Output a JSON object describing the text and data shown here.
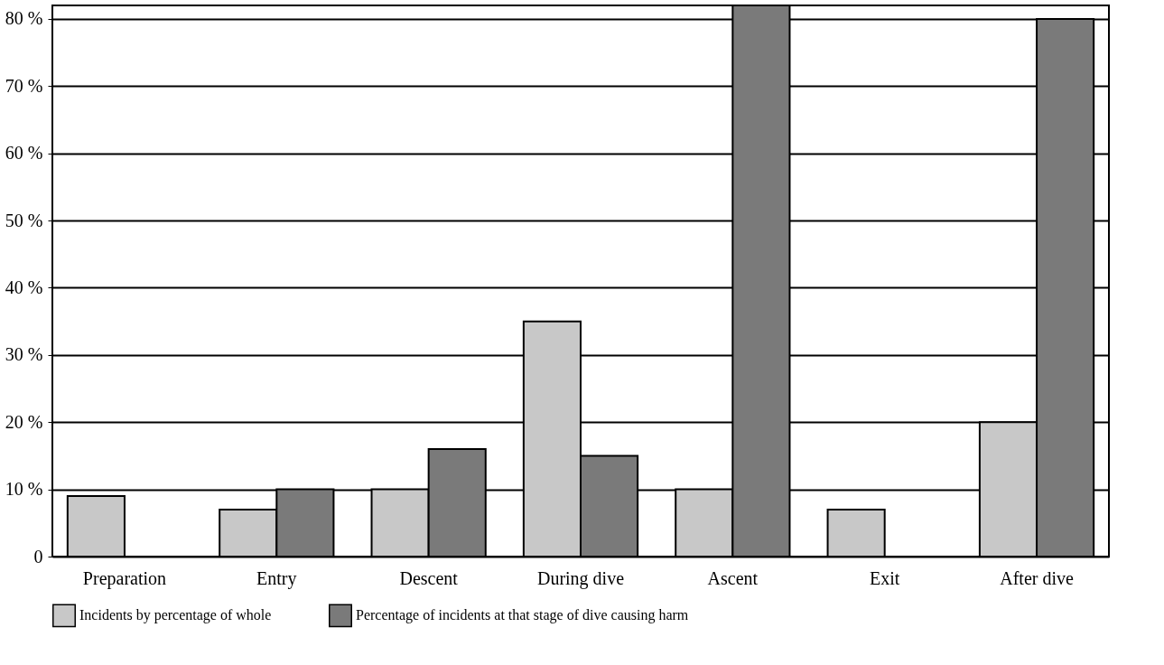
{
  "chart_data": {
    "type": "bar",
    "categories": [
      "Preparation",
      "Entry",
      "Descent",
      "During dive",
      "Ascent",
      "Exit",
      "After dive"
    ],
    "series": [
      {
        "name": "Incidents by percentage of whole",
        "color": "#c8c8c8",
        "values": [
          9,
          7,
          10,
          35,
          10,
          7,
          20
        ]
      },
      {
        "name": "Percentage of incidents at that stage of dive causing harm",
        "color": "#7a7a7a",
        "values": [
          null,
          10,
          16,
          15,
          82,
          null,
          80
        ]
      }
    ],
    "ylim": [
      0,
      82
    ],
    "yticks": [
      0,
      {
        "value": 10,
        "label": "10 %"
      },
      {
        "value": 20,
        "label": "20 %"
      },
      {
        "value": 30,
        "label": "30 %"
      },
      {
        "value": 40,
        "label": "40 %"
      },
      {
        "value": 50,
        "label": "50 %"
      },
      {
        "value": 60,
        "label": "60 %"
      },
      {
        "value": 70,
        "label": "70 %"
      },
      {
        "value": 80,
        "label": "80 %"
      }
    ],
    "grid": "y",
    "legend": "bottom"
  }
}
